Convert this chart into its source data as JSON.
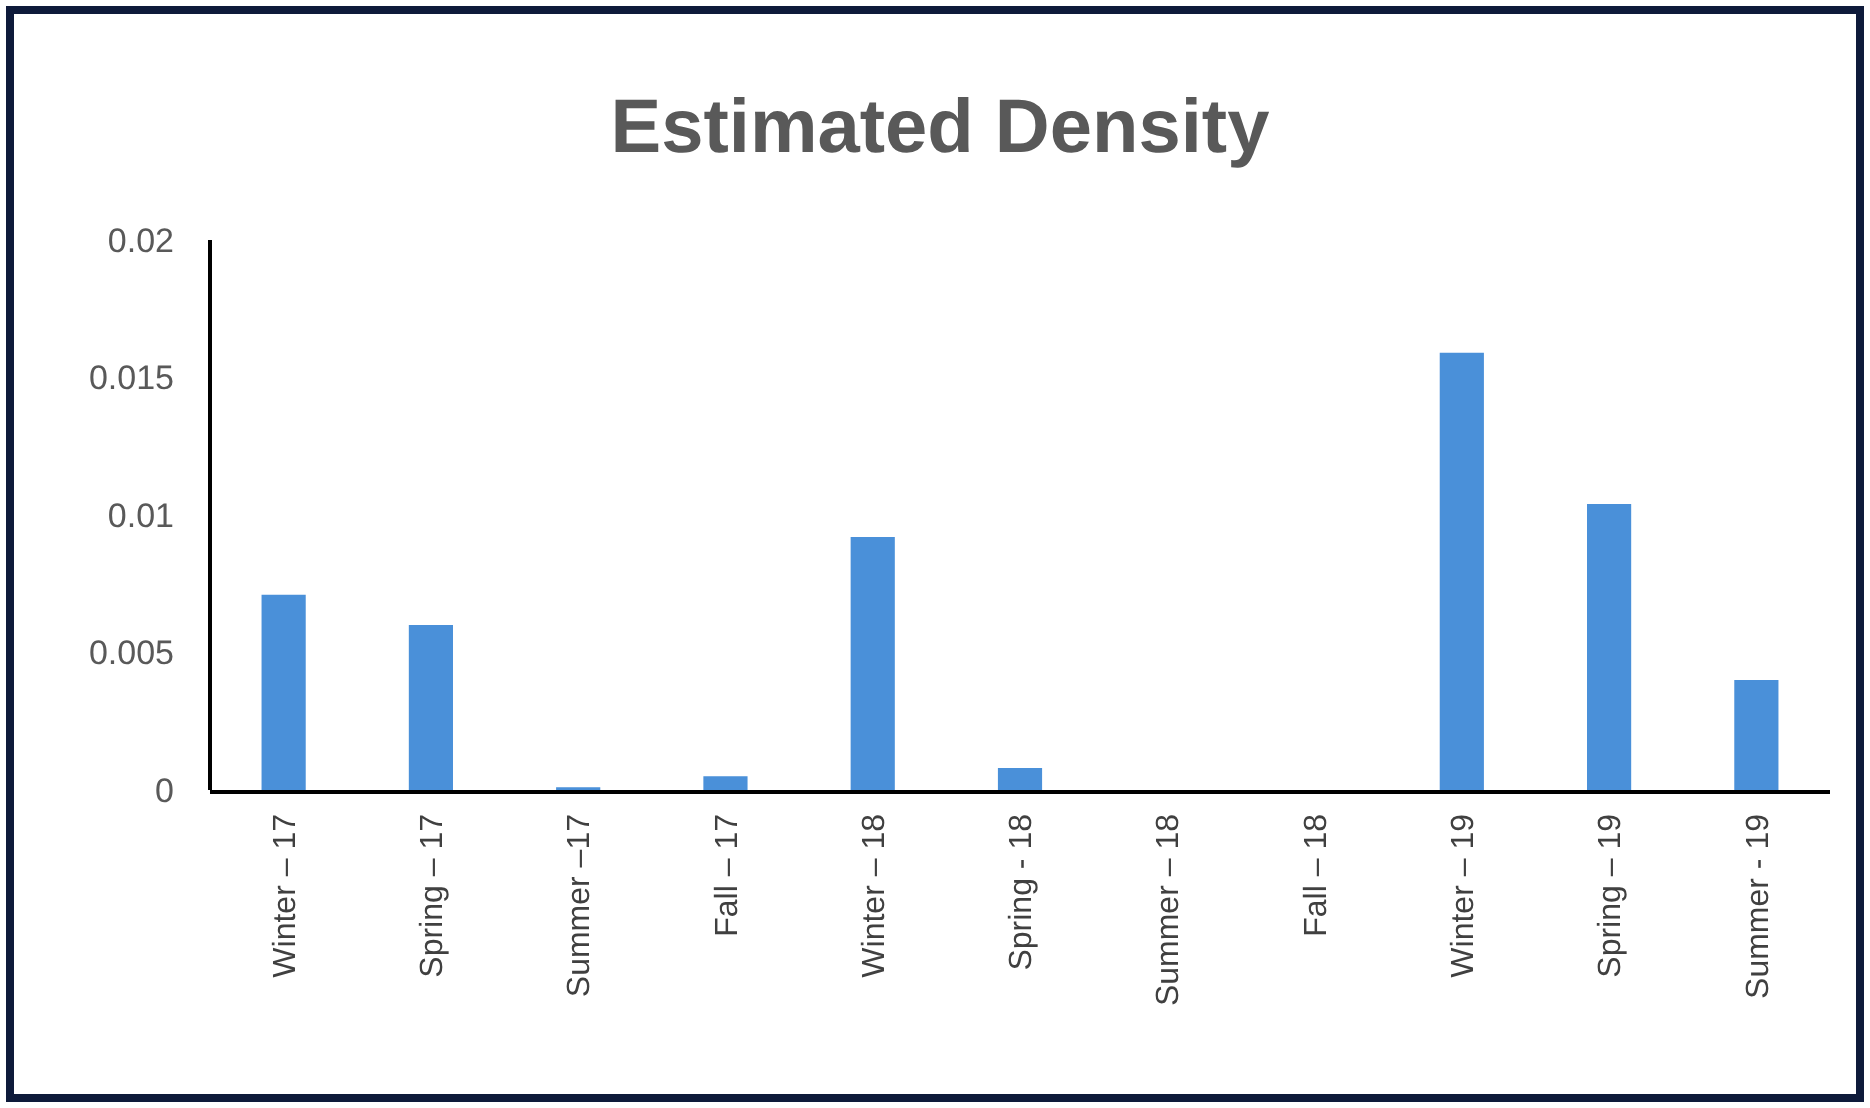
{
  "chart_data": {
    "type": "bar",
    "title": "Estimated Density",
    "categories": [
      "Winter – 17",
      "Spring – 17",
      "Summer –17",
      "Fall – 17",
      "Winter – 18",
      "Spring - 18",
      "Summer – 18",
      "Fall – 18",
      "Winter – 19",
      "Spring – 19",
      "Summer - 19"
    ],
    "values": [
      0.0071,
      0.006,
      0.0001,
      0.0005,
      0.0092,
      0.0008,
      0,
      0,
      0.0159,
      0.0104,
      0.004
    ],
    "color": "#4a90d9",
    "ylim": [
      0,
      0.02
    ],
    "yticks": [
      0,
      0.005,
      0.01,
      0.015,
      0.02
    ],
    "grid": false
  }
}
